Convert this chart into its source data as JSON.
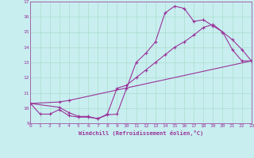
{
  "title": "",
  "xlabel": "Windchill (Refroidissement éolien,°C)",
  "ylabel": "",
  "background_color": "#c8eef0",
  "line_color": "#993399",
  "x_min": 0,
  "x_max": 23,
  "y_min": 9,
  "y_max": 17,
  "series1_x": [
    0,
    1,
    2,
    3,
    4,
    5,
    6,
    7,
    8,
    9,
    10,
    11,
    12,
    13,
    14,
    15,
    16,
    17,
    18,
    19,
    20,
    21,
    22,
    23
  ],
  "series1_y": [
    10.3,
    9.6,
    9.6,
    9.9,
    9.5,
    9.4,
    9.4,
    9.3,
    9.55,
    9.6,
    11.3,
    13.0,
    13.6,
    14.35,
    16.25,
    16.7,
    16.55,
    15.7,
    15.8,
    15.4,
    15.0,
    13.85,
    13.1,
    13.1
  ],
  "series2_x": [
    0,
    3,
    4,
    5,
    6,
    7,
    8,
    9,
    10,
    11,
    12,
    13,
    14,
    15,
    16,
    17,
    18,
    19,
    20,
    21,
    22,
    23
  ],
  "series2_y": [
    10.3,
    10.05,
    9.7,
    9.45,
    9.45,
    9.3,
    9.6,
    11.3,
    11.5,
    12.0,
    12.5,
    13.0,
    13.5,
    14.0,
    14.35,
    14.8,
    15.3,
    15.5,
    15.0,
    14.5,
    13.85,
    13.1
  ],
  "series3_x": [
    0,
    3,
    4,
    23
  ],
  "series3_y": [
    10.3,
    10.4,
    10.5,
    13.1
  ],
  "tick_color": "#993399",
  "grid_color": "#aaddcc",
  "font_color": "#993399"
}
